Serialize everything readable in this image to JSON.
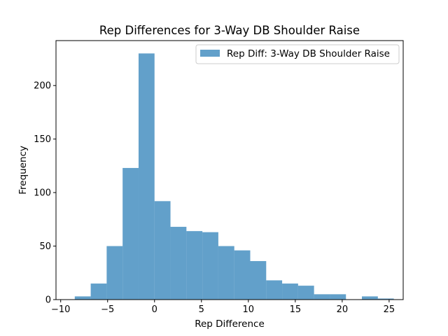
{
  "chart_data": {
    "type": "bar",
    "title": "Rep Differences for 3-Way DB Shoulder Raise",
    "xlabel": "Rep Difference",
    "ylabel": "Frequency",
    "xlim": [
      -10.5,
      26.5
    ],
    "ylim": [
      0,
      242
    ],
    "xticks": [
      -10,
      -5,
      0,
      5,
      10,
      15,
      20,
      25
    ],
    "yticks": [
      0,
      50,
      100,
      150,
      200
    ],
    "bar_color": "#1f77b4",
    "bar_opacity": 0.7,
    "legend": {
      "label": "Rep Diff: 3-Way DB Shoulder Raise",
      "placement": "upper right"
    },
    "bins": [
      [
        -8.5,
        -6.8
      ],
      [
        -6.8,
        -5.1
      ],
      [
        -5.1,
        -3.4
      ],
      [
        -3.4,
        -1.7
      ],
      [
        -1.7,
        0
      ],
      [
        0,
        1.7
      ],
      [
        1.7,
        3.4
      ],
      [
        3.4,
        5.1
      ],
      [
        5.1,
        6.8
      ],
      [
        6.8,
        8.5
      ],
      [
        8.5,
        10.2
      ],
      [
        10.2,
        11.9
      ],
      [
        11.9,
        13.6
      ],
      [
        13.6,
        15.3
      ],
      [
        15.3,
        17.0
      ],
      [
        17.0,
        18.7
      ],
      [
        18.7,
        20.4
      ],
      [
        20.4,
        22.1
      ],
      [
        22.1,
        23.8
      ],
      [
        23.8,
        25.5
      ]
    ],
    "values": [
      3,
      15,
      50,
      123,
      230,
      92,
      68,
      64,
      63,
      50,
      46,
      36,
      18,
      15,
      13,
      5,
      5,
      0,
      3,
      1
    ]
  }
}
